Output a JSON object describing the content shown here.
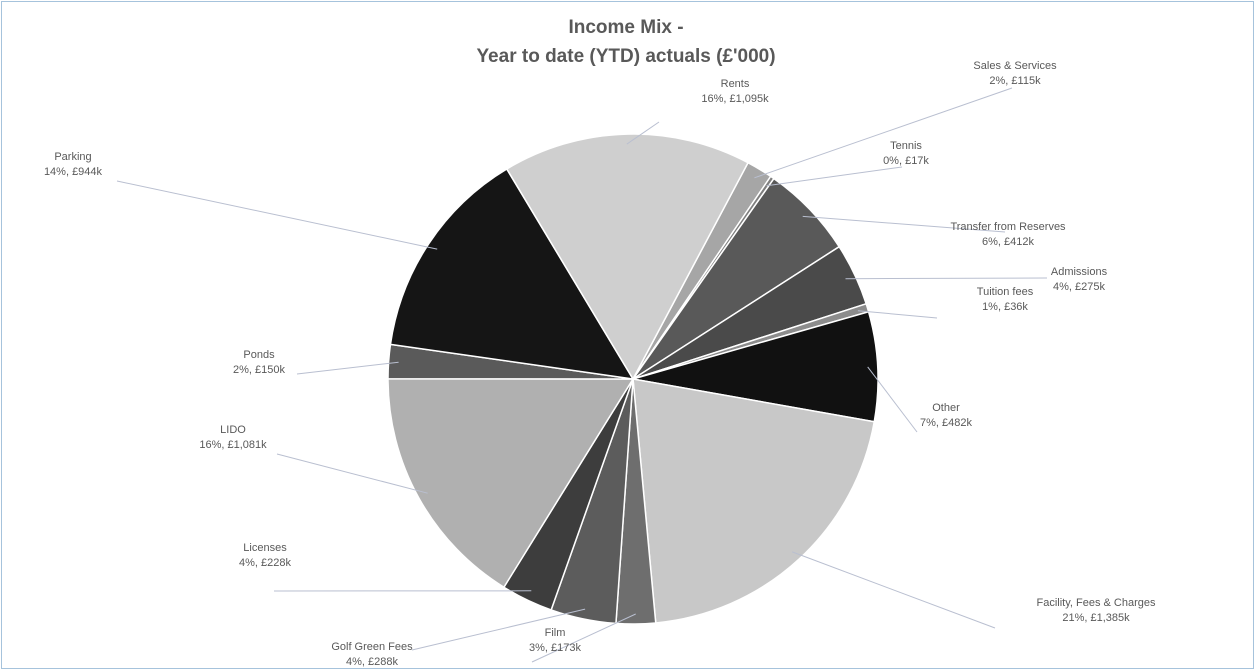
{
  "chart_data": {
    "type": "pie",
    "title_line1": "Income Mix -",
    "title_line2": "Year to date (YTD) actuals (£'000)",
    "slices": [
      {
        "name": "Sales & Services",
        "label": "2%, £115k",
        "value": 115,
        "color": "#a6a6a6"
      },
      {
        "name": "Tennis",
        "label": "0%, £17k",
        "value": 17,
        "color": "#7f7f7f"
      },
      {
        "name": "Transfer from Reserves",
        "label": "6%, £412k",
        "value": 412,
        "color": "#595959"
      },
      {
        "name": "Admissions",
        "label": "4%, £275k",
        "value": 275,
        "color": "#4a4a4a"
      },
      {
        "name": "Tuition fees",
        "label": "1%, £36k",
        "value": 36,
        "color": "#8c8c8c"
      },
      {
        "name": "Other",
        "label": "7%, £482k",
        "value": 482,
        "color": "#111111"
      },
      {
        "name": "Facility, Fees & Charges",
        "label": "21%, £1,385k",
        "value": 1385,
        "color": "#c8c8c8"
      },
      {
        "name": "Film",
        "label": "3%, £173k",
        "value": 173,
        "color": "#6e6e6e"
      },
      {
        "name": "Golf Green Fees",
        "label": "4%, £288k",
        "value": 288,
        "color": "#5c5c5c"
      },
      {
        "name": "Licenses",
        "label": "4%, £228k",
        "value": 228,
        "color": "#3d3d3d"
      },
      {
        "name": "LIDO",
        "label": "16%, £1,081k",
        "value": 1081,
        "color": "#b0b0b0"
      },
      {
        "name": "Ponds",
        "label": "2%, £150k",
        "value": 150,
        "color": "#5a5a5a"
      },
      {
        "name": "Parking",
        "label": "14%, £944k",
        "value": 944,
        "color": "#151515"
      },
      {
        "name": "Rents",
        "label": "16%, £1,095k",
        "value": 1095,
        "color": "#cfcfcf"
      }
    ]
  }
}
